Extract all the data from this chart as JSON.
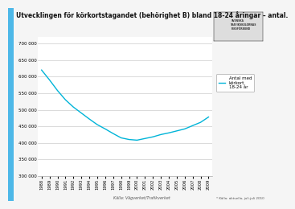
{
  "title": "Utvecklingen för körkortstagandet (behörighet B) bland 18-24 åringar – antal.",
  "years": [
    1988,
    1989,
    1990,
    1991,
    1992,
    1993,
    1994,
    1995,
    1996,
    1997,
    1998,
    1999,
    2000,
    2001,
    2002,
    2003,
    2004,
    2005,
    2006,
    2007,
    2008,
    2009
  ],
  "values": [
    620000,
    590000,
    558000,
    530000,
    508000,
    490000,
    472000,
    455000,
    442000,
    428000,
    415000,
    410000,
    408000,
    413000,
    418000,
    425000,
    430000,
    436000,
    442000,
    452000,
    462000,
    478000
  ],
  "line_color": "#00b4d8",
  "ylim": [
    300000,
    720000
  ],
  "yticks": [
    300000,
    350000,
    400000,
    450000,
    500000,
    550000,
    600000,
    650000,
    700000
  ],
  "legend_label": "Antal med\nkörkort\n18-24 år",
  "source_text": "Källa: Vägverket/Trafikverket",
  "footnote_text": "* Källa: aktuella, juli-juli 2010",
  "bg_color": "#f5f5f5",
  "plot_bg_color": "#ffffff",
  "grid_color": "#cccccc",
  "left_bar_color": "#4db8e8",
  "title_fontsize": 5.5,
  "axis_fontsize": 4.0,
  "legend_fontsize": 4.0,
  "source_fontsize": 3.5,
  "footnote_fontsize": 3.0
}
